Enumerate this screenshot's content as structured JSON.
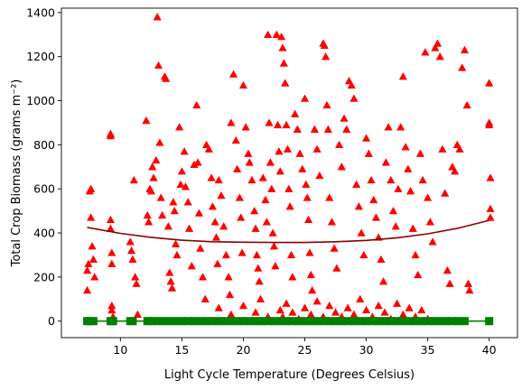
{
  "chart_data": {
    "type": "scatter",
    "xlabel": "Light Cycle Temperature (Degrees Celsius)",
    "ylabel": "Total Crop Biomass (grams m⁻²)",
    "xlim": [
      5.2,
      42.3
    ],
    "ylim": [
      -75,
      1420
    ],
    "x_ticks": [
      10,
      15,
      20,
      25,
      30,
      35,
      40
    ],
    "y_ticks": [
      0,
      200,
      400,
      600,
      800,
      1000,
      1200,
      1400
    ],
    "x_tick_labels": [
      "10",
      "15",
      "20",
      "25",
      "30",
      "35",
      "40"
    ],
    "y_tick_labels": [
      "0",
      "200",
      "400",
      "600",
      "800",
      "1000",
      "1200",
      "1400"
    ],
    "grid": false,
    "legend": "none",
    "series": [
      {
        "marker": "triangle",
        "color": "#ff0000",
        "points": [
          [
            7.3,
            140
          ],
          [
            7.3,
            230
          ],
          [
            7.4,
            260
          ],
          [
            7.5,
            590
          ],
          [
            7.6,
            600
          ],
          [
            7.6,
            470
          ],
          [
            7.7,
            340
          ],
          [
            7.8,
            280
          ],
          [
            7.9,
            200
          ],
          [
            9.2,
            850
          ],
          [
            9.2,
            840
          ],
          [
            9.2,
            460
          ],
          [
            9.2,
            420
          ],
          [
            9.3,
            310
          ],
          [
            9.3,
            260
          ],
          [
            9.3,
            70
          ],
          [
            9.3,
            50
          ],
          [
            9.4,
            20
          ],
          [
            10.8,
            360
          ],
          [
            10.9,
            320
          ],
          [
            11.0,
            280
          ],
          [
            11.1,
            640
          ],
          [
            11.2,
            200
          ],
          [
            11.3,
            170
          ],
          [
            11.4,
            30
          ],
          [
            12.1,
            910
          ],
          [
            12.2,
            480
          ],
          [
            12.3,
            450
          ],
          [
            12.4,
            600
          ],
          [
            12.5,
            590
          ],
          [
            12.6,
            700
          ],
          [
            12.7,
            650
          ],
          [
            12.9,
            730
          ],
          [
            13.0,
            1380
          ],
          [
            13.1,
            1160
          ],
          [
            13.2,
            810
          ],
          [
            13.3,
            560
          ],
          [
            13.4,
            480
          ],
          [
            13.6,
            1110
          ],
          [
            13.7,
            1100
          ],
          [
            13.9,
            430
          ],
          [
            14.0,
            220
          ],
          [
            14.1,
            180
          ],
          [
            14.2,
            150
          ],
          [
            14.3,
            540
          ],
          [
            14.4,
            500
          ],
          [
            14.5,
            350
          ],
          [
            14.6,
            300
          ],
          [
            14.8,
            880
          ],
          [
            14.9,
            620
          ],
          [
            15.0,
            680
          ],
          [
            15.2,
            770
          ],
          [
            15.3,
            610
          ],
          [
            15.5,
            540
          ],
          [
            15.6,
            420
          ],
          [
            15.8,
            250
          ],
          [
            16.0,
            710
          ],
          [
            16.2,
            980
          ],
          [
            16.3,
            720
          ],
          [
            16.4,
            490
          ],
          [
            16.5,
            330
          ],
          [
            16.7,
            200
          ],
          [
            16.9,
            100
          ],
          [
            17.0,
            800
          ],
          [
            17.2,
            780
          ],
          [
            17.4,
            650
          ],
          [
            17.5,
            520
          ],
          [
            17.7,
            450
          ],
          [
            17.8,
            380
          ],
          [
            17.9,
            260
          ],
          [
            18.0,
            640
          ],
          [
            18.2,
            570
          ],
          [
            18.4,
            430
          ],
          [
            18.6,
            300
          ],
          [
            18.8,
            200
          ],
          [
            18.9,
            120
          ],
          [
            19.0,
            900
          ],
          [
            19.2,
            1120
          ],
          [
            19.4,
            820
          ],
          [
            19.5,
            690
          ],
          [
            19.7,
            560
          ],
          [
            19.8,
            470
          ],
          [
            19.9,
            310
          ],
          [
            20.0,
            1070
          ],
          [
            20.2,
            880
          ],
          [
            20.4,
            760
          ],
          [
            20.5,
            720
          ],
          [
            20.7,
            640
          ],
          [
            20.9,
            500
          ],
          [
            21.0,
            420
          ],
          [
            21.1,
            300
          ],
          [
            21.2,
            240
          ],
          [
            21.3,
            180
          ],
          [
            21.4,
            100
          ],
          [
            21.6,
            650
          ],
          [
            21.8,
            550
          ],
          [
            21.9,
            450
          ],
          [
            22.0,
            1300
          ],
          [
            22.1,
            900
          ],
          [
            22.2,
            720
          ],
          [
            22.3,
            600
          ],
          [
            22.4,
            400
          ],
          [
            22.5,
            340
          ],
          [
            22.6,
            250
          ],
          [
            22.7,
            1300
          ],
          [
            22.8,
            890
          ],
          [
            22.9,
            770
          ],
          [
            23.0,
            680
          ],
          [
            23.1,
            1290
          ],
          [
            23.2,
            1240
          ],
          [
            23.3,
            1170
          ],
          [
            23.4,
            1080
          ],
          [
            23.5,
            890
          ],
          [
            23.6,
            780
          ],
          [
            23.7,
            600
          ],
          [
            23.8,
            520
          ],
          [
            23.9,
            300
          ],
          [
            24.0,
            200
          ],
          [
            24.2,
            940
          ],
          [
            24.4,
            870
          ],
          [
            24.6,
            760
          ],
          [
            24.8,
            690
          ],
          [
            25.0,
            1010
          ],
          [
            25.1,
            620
          ],
          [
            25.2,
            560
          ],
          [
            25.3,
            460
          ],
          [
            25.4,
            310
          ],
          [
            25.5,
            210
          ],
          [
            25.6,
            140
          ],
          [
            25.8,
            870
          ],
          [
            26.0,
            780
          ],
          [
            26.2,
            660
          ],
          [
            26.5,
            1260
          ],
          [
            26.6,
            1250
          ],
          [
            26.7,
            1200
          ],
          [
            26.8,
            980
          ],
          [
            26.9,
            870
          ],
          [
            27.0,
            560
          ],
          [
            27.2,
            450
          ],
          [
            27.4,
            330
          ],
          [
            27.6,
            240
          ],
          [
            27.8,
            800
          ],
          [
            28.0,
            700
          ],
          [
            28.2,
            920
          ],
          [
            28.4,
            870
          ],
          [
            28.6,
            1090
          ],
          [
            28.8,
            1070
          ],
          [
            29.0,
            1010
          ],
          [
            29.2,
            620
          ],
          [
            29.4,
            520
          ],
          [
            29.6,
            400
          ],
          [
            29.8,
            300
          ],
          [
            30.0,
            830
          ],
          [
            30.2,
            760
          ],
          [
            30.4,
            640
          ],
          [
            30.6,
            550
          ],
          [
            30.8,
            470
          ],
          [
            31.0,
            380
          ],
          [
            31.2,
            280
          ],
          [
            31.4,
            180
          ],
          [
            31.6,
            720
          ],
          [
            31.8,
            880
          ],
          [
            32.0,
            640
          ],
          [
            32.2,
            500
          ],
          [
            32.4,
            430
          ],
          [
            32.6,
            600
          ],
          [
            32.8,
            880
          ],
          [
            33.0,
            1110
          ],
          [
            33.2,
            790
          ],
          [
            33.4,
            690
          ],
          [
            33.6,
            590
          ],
          [
            33.8,
            420
          ],
          [
            34.0,
            300
          ],
          [
            34.2,
            210
          ],
          [
            34.4,
            760
          ],
          [
            34.6,
            640
          ],
          [
            34.8,
            1220
          ],
          [
            35.0,
            560
          ],
          [
            35.2,
            450
          ],
          [
            35.4,
            360
          ],
          [
            35.6,
            1240
          ],
          [
            35.8,
            1260
          ],
          [
            36.0,
            1200
          ],
          [
            36.2,
            780
          ],
          [
            36.4,
            580
          ],
          [
            36.6,
            230
          ],
          [
            36.8,
            170
          ],
          [
            37.0,
            700
          ],
          [
            37.2,
            680
          ],
          [
            37.4,
            800
          ],
          [
            37.6,
            780
          ],
          [
            37.8,
            1150
          ],
          [
            38.0,
            1230
          ],
          [
            38.2,
            980
          ],
          [
            38.3,
            170
          ],
          [
            38.4,
            140
          ],
          [
            40.0,
            1080
          ],
          [
            40.0,
            900
          ],
          [
            40.0,
            890
          ],
          [
            40.1,
            650
          ],
          [
            40.1,
            510
          ],
          [
            40.1,
            470
          ],
          [
            23.0,
            50
          ],
          [
            23.2,
            20
          ],
          [
            23.5,
            80
          ],
          [
            24.0,
            40
          ],
          [
            24.5,
            10
          ],
          [
            25.0,
            60
          ],
          [
            25.5,
            30
          ],
          [
            26.0,
            90
          ],
          [
            26.5,
            20
          ],
          [
            27.0,
            70
          ],
          [
            27.5,
            40
          ],
          [
            28.0,
            20
          ],
          [
            28.5,
            60
          ],
          [
            29.0,
            30
          ],
          [
            29.5,
            100
          ],
          [
            30.0,
            50
          ],
          [
            30.5,
            20
          ],
          [
            31.0,
            70
          ],
          [
            31.5,
            40
          ],
          [
            32.0,
            10
          ],
          [
            32.5,
            80
          ],
          [
            33.0,
            30
          ],
          [
            33.5,
            60
          ],
          [
            34.0,
            20
          ],
          [
            34.5,
            50
          ],
          [
            35.0,
            10
          ],
          [
            18.0,
            60
          ],
          [
            19.0,
            30
          ],
          [
            20.0,
            70
          ],
          [
            21.0,
            40
          ],
          [
            22.0,
            20
          ]
        ]
      },
      {
        "marker": "square",
        "color": "#008000",
        "points": [
          [
            7.3,
            0
          ],
          [
            7.5,
            0
          ],
          [
            7.8,
            0
          ],
          [
            9.2,
            0
          ],
          [
            9.4,
            0
          ],
          [
            10.8,
            0
          ],
          [
            11.0,
            0
          ],
          [
            12.2,
            0
          ],
          [
            12.5,
            0
          ],
          [
            13.0,
            0
          ],
          [
            13.5,
            0
          ],
          [
            14.0,
            0
          ],
          [
            14.5,
            0
          ],
          [
            15.0,
            0
          ],
          [
            15.5,
            0
          ],
          [
            16.0,
            0
          ],
          [
            16.5,
            0
          ],
          [
            17.0,
            0
          ],
          [
            17.5,
            0
          ],
          [
            18.0,
            0
          ],
          [
            18.5,
            0
          ],
          [
            19.0,
            0
          ],
          [
            19.5,
            0
          ],
          [
            20.0,
            0
          ],
          [
            20.5,
            0
          ],
          [
            21.0,
            0
          ],
          [
            21.5,
            0
          ],
          [
            22.0,
            0
          ],
          [
            22.5,
            0
          ],
          [
            23.0,
            0
          ],
          [
            23.5,
            0
          ],
          [
            24.0,
            0
          ],
          [
            24.5,
            0
          ],
          [
            25.0,
            0
          ],
          [
            25.5,
            0
          ],
          [
            26.0,
            0
          ],
          [
            26.5,
            0
          ],
          [
            27.0,
            0
          ],
          [
            27.5,
            0
          ],
          [
            28.0,
            0
          ],
          [
            28.5,
            0
          ],
          [
            29.0,
            0
          ],
          [
            29.5,
            0
          ],
          [
            30.0,
            0
          ],
          [
            30.5,
            0
          ],
          [
            31.0,
            0
          ],
          [
            31.5,
            0
          ],
          [
            32.0,
            0
          ],
          [
            32.5,
            0
          ],
          [
            33.0,
            0
          ],
          [
            33.5,
            0
          ],
          [
            34.0,
            0
          ],
          [
            34.5,
            0
          ],
          [
            35.0,
            0
          ],
          [
            35.5,
            0
          ],
          [
            36.0,
            0
          ],
          [
            36.5,
            0
          ],
          [
            37.0,
            0
          ],
          [
            37.5,
            0
          ],
          [
            38.0,
            0
          ],
          [
            40.0,
            0
          ]
        ]
      }
    ],
    "fit_lines": [
      {
        "color": "#8b0000",
        "points": [
          [
            7.3,
            425
          ],
          [
            10,
            398
          ],
          [
            12.5,
            380
          ],
          [
            15,
            367
          ],
          [
            17.5,
            360
          ],
          [
            20,
            358
          ],
          [
            22.5,
            357
          ],
          [
            25,
            357
          ],
          [
            27.5,
            360
          ],
          [
            30,
            366
          ],
          [
            32.5,
            378
          ],
          [
            35,
            396
          ],
          [
            37.5,
            422
          ],
          [
            40,
            457
          ]
        ]
      },
      {
        "color": "#008000",
        "points": [
          [
            7.3,
            0
          ],
          [
            40,
            0
          ]
        ]
      }
    ]
  }
}
